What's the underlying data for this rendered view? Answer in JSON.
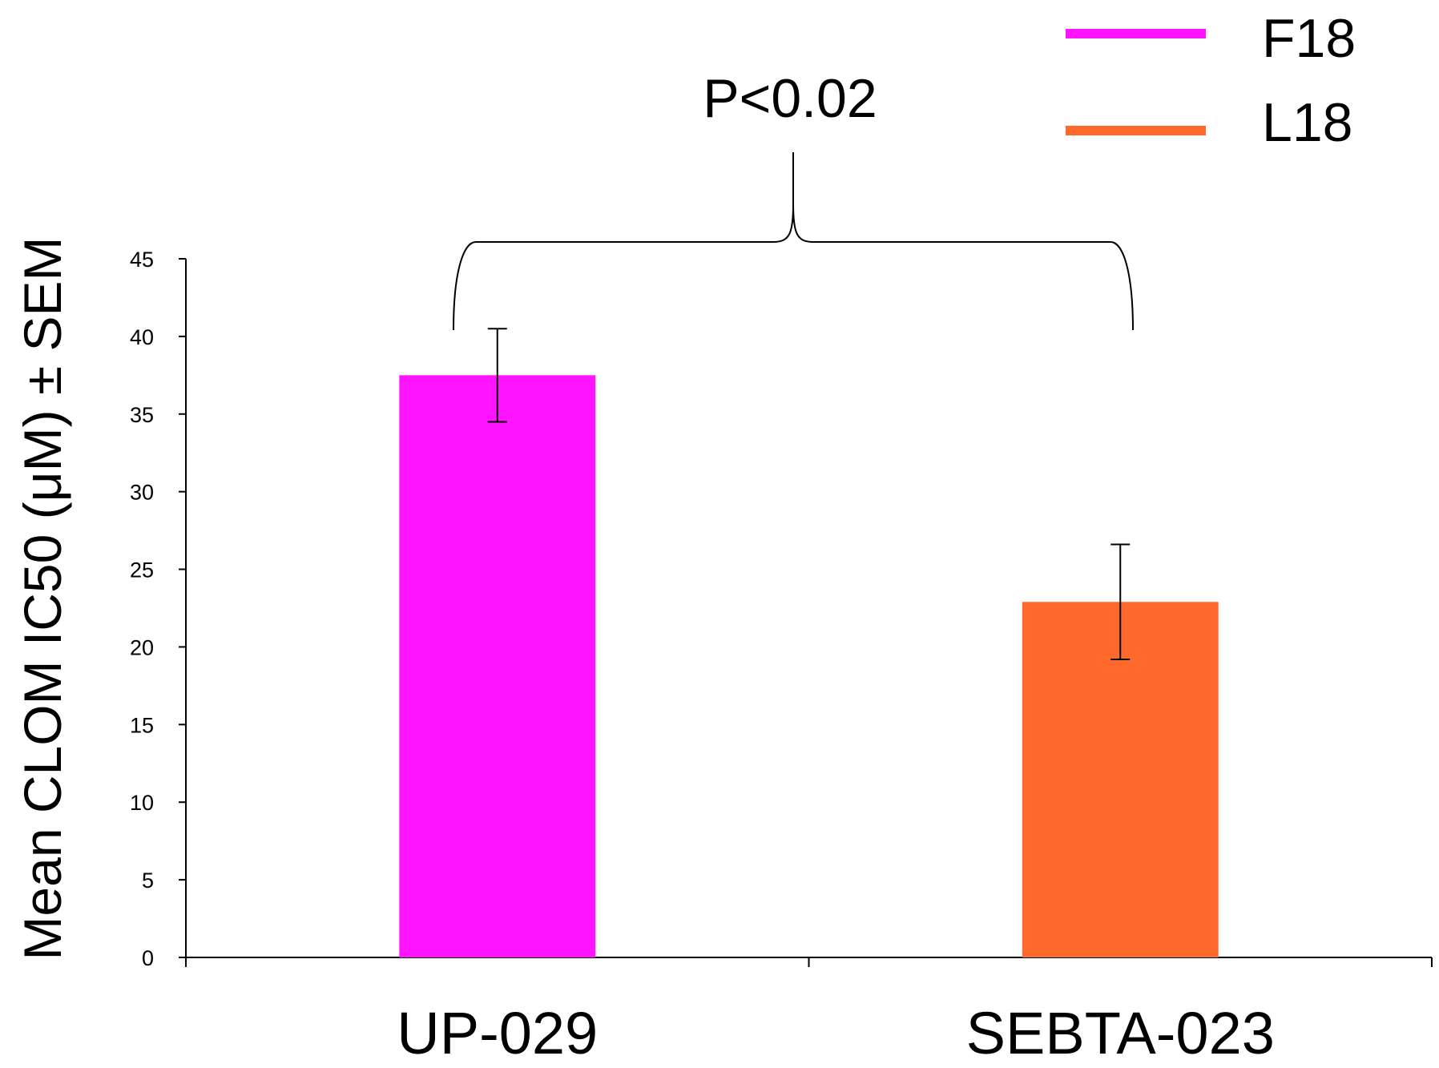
{
  "chart_data": {
    "type": "bar",
    "title": "",
    "xlabel": "",
    "ylabel": "Mean CLOM IC50 (μM) ± SEM",
    "categories": [
      "UP-029",
      "SEBTA-023"
    ],
    "values": [
      37.5,
      22.9
    ],
    "errors": [
      3.0,
      3.7
    ],
    "colors": [
      "#ff14ff",
      "#ff6a2c"
    ],
    "ylim": [
      0,
      45
    ],
    "yticks": [
      0,
      5,
      10,
      15,
      20,
      25,
      30,
      35,
      40,
      45
    ],
    "ytick_labels": [
      "0",
      "5",
      "10",
      "15",
      "20",
      "25",
      "30",
      "35",
      "40",
      "45"
    ],
    "grid": false,
    "legend": {
      "position": "top-right",
      "entries": [
        {
          "label": "F18",
          "color": "#ff14ff"
        },
        {
          "label": "L18",
          "color": "#ff6a2c"
        }
      ]
    },
    "annotation": "P<0.02"
  }
}
